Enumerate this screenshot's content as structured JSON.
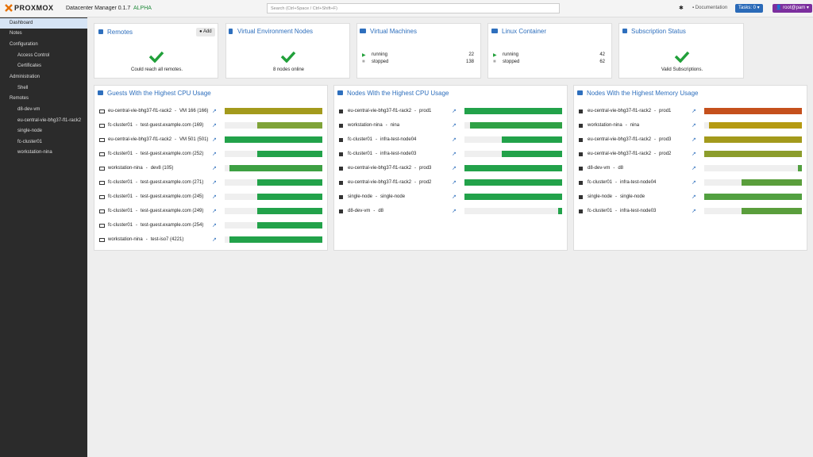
{
  "header": {
    "logo": "PROXMOX",
    "product": "Datacenter Manager 0.1.7",
    "badge": "ALPHA",
    "search": "Search (Ctrl+Space / Ctrl+Shift+F)",
    "documentation": "Documentation",
    "tasks": "Tasks: 0",
    "user": "root@pam"
  },
  "sidebar": {
    "dashboard": "Dashboard",
    "notes": "Notes",
    "configuration": {
      "label": "Configuration",
      "items": [
        "Access Control",
        "Certificates"
      ]
    },
    "administration": {
      "label": "Administration",
      "items": [
        "Shell"
      ]
    },
    "remotes": {
      "label": "Remotes",
      "items": [
        "d8-dev-vm",
        "eu-central-vie-bhg37-fl1-rack2",
        "single-node",
        "fc-cluster01",
        "workstation-nina"
      ]
    }
  },
  "cards": {
    "remotes": {
      "title": "Remotes",
      "button": "Add",
      "status": "Could reach all remotes."
    },
    "nodes": {
      "title": "Virtual Environment Nodes",
      "status": "8 nodes online"
    },
    "vms": {
      "title": "Virtual Machines",
      "running_label": "running",
      "running": 22,
      "stopped_label": "stopped",
      "stopped": 138
    },
    "containers": {
      "title": "Linux Container",
      "running_label": "running",
      "running": 42,
      "stopped_label": "stopped",
      "stopped": 62
    },
    "subscription": {
      "title": "Subscription Status",
      "status": "Valid Subscriptions."
    }
  },
  "separator": "-",
  "panels": [
    {
      "title": "Guests With the Highest CPU Usage",
      "rows": [
        {
          "icon": "vm",
          "remote": "eu-central-vie-bhg37-fl1-rack2",
          "name": "VM 166 (166)",
          "usage": 100,
          "color": "#a39a1c"
        },
        {
          "icon": "vm",
          "remote": "fc-cluster01",
          "name": "test-guest.example.com (169)",
          "usage": 67,
          "color": "#7fa338"
        },
        {
          "icon": "vm",
          "remote": "eu-central-vie-bhg37-fl1-rack2",
          "name": "VM 501 (501)",
          "usage": 100,
          "color": "#22a24a"
        },
        {
          "icon": "vm",
          "remote": "fc-cluster01",
          "name": "test-guest.example.com (252)",
          "usage": 67,
          "color": "#22a24a"
        },
        {
          "icon": "vm",
          "remote": "workstation-nina",
          "name": "dev8 (105)",
          "usage": 95,
          "color": "#3da043"
        },
        {
          "icon": "vm",
          "remote": "fc-cluster01",
          "name": "test-guest.example.com (271)",
          "usage": 67,
          "color": "#22a24a"
        },
        {
          "icon": "vm",
          "remote": "fc-cluster01",
          "name": "test-guest.example.com (245)",
          "usage": 67,
          "color": "#22a24a"
        },
        {
          "icon": "vm",
          "remote": "fc-cluster01",
          "name": "test-guest.example.com (249)",
          "usage": 67,
          "color": "#22a24a"
        },
        {
          "icon": "vm",
          "remote": "fc-cluster01",
          "name": "test-guest.example.com (254)",
          "usage": 67,
          "color": "#22a24a"
        },
        {
          "icon": "vm",
          "remote": "workstation-nina",
          "name": "test-iso7 (4221)",
          "usage": 95,
          "color": "#22a24a"
        }
      ]
    },
    {
      "title": "Nodes With the Highest CPU Usage",
      "rows": [
        {
          "icon": "node",
          "remote": "eu-central-vie-bhg37-fl1-rack2",
          "name": "prod1",
          "usage": 100,
          "color": "#22a24a"
        },
        {
          "icon": "node",
          "remote": "workstation-nina",
          "name": "nina",
          "usage": 94,
          "color": "#2fa145"
        },
        {
          "icon": "node",
          "remote": "fc-cluster01",
          "name": "infra-test-node04",
          "usage": 62,
          "color": "#22a24a"
        },
        {
          "icon": "node",
          "remote": "fc-cluster01",
          "name": "infra-test-node03",
          "usage": 62,
          "color": "#22a24a"
        },
        {
          "icon": "node",
          "remote": "eu-central-vie-bhg37-fl1-rack2",
          "name": "prod3",
          "usage": 100,
          "color": "#22a24a"
        },
        {
          "icon": "node",
          "remote": "eu-central-vie-bhg37-fl1-rack2",
          "name": "prod2",
          "usage": 100,
          "color": "#22a24a"
        },
        {
          "icon": "node",
          "remote": "single-node",
          "name": "single-node",
          "usage": 100,
          "color": "#22a24a"
        },
        {
          "icon": "node",
          "remote": "d8-dev-vm",
          "name": "d8",
          "usage": 4,
          "color": "#22a24a"
        }
      ]
    },
    {
      "title": "Nodes With the Highest Memory Usage",
      "rows": [
        {
          "icon": "node",
          "remote": "eu-central-vie-bhg37-fl1-rack2",
          "name": "prod1",
          "usage": 100,
          "color": "#c5501c"
        },
        {
          "icon": "node",
          "remote": "workstation-nina",
          "name": "nina",
          "usage": 95,
          "color": "#b59a12"
        },
        {
          "icon": "node",
          "remote": "eu-central-vie-bhg37-fl1-rack2",
          "name": "prod3",
          "usage": 100,
          "color": "#a39a1c"
        },
        {
          "icon": "node",
          "remote": "eu-central-vie-bhg37-fl1-rack2",
          "name": "prod2",
          "usage": 100,
          "color": "#8c9d2c"
        },
        {
          "icon": "node",
          "remote": "d8-dev-vm",
          "name": "d8",
          "usage": 4,
          "color": "#52a040"
        },
        {
          "icon": "node",
          "remote": "fc-cluster01",
          "name": "infra-test-node04",
          "usage": 62,
          "color": "#5a9e3c"
        },
        {
          "icon": "node",
          "remote": "single-node",
          "name": "single-node",
          "usage": 100,
          "color": "#52a040"
        },
        {
          "icon": "node",
          "remote": "fc-cluster01",
          "name": "infra-test-node03",
          "usage": 62,
          "color": "#5a9e3c"
        }
      ]
    }
  ]
}
